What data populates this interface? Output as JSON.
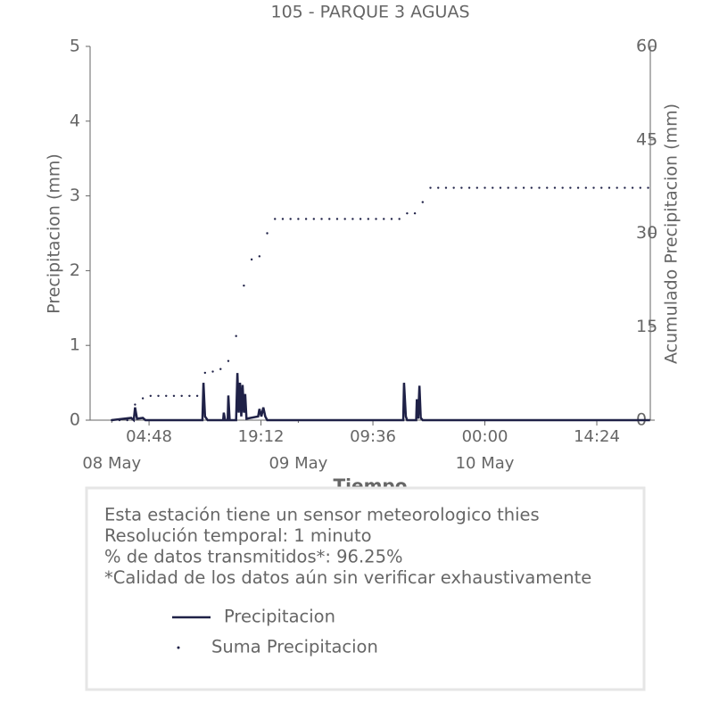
{
  "chart_data": {
    "type": "line",
    "title": "105 - PARQUE 3 AGUAS",
    "xlabel": "Tiempo",
    "ylabel": "Precipitacion (mm)",
    "y2label": "Acumulado Precipitacion (mm)",
    "xlim": [
      "07 May 21:13",
      "10 May 21:17"
    ],
    "xticks": [
      {
        "value": "08 May 04:48",
        "label": "04:48"
      },
      {
        "value": "08 May 19:12",
        "label": "19:12"
      },
      {
        "value": "09 May 09:36",
        "label": "09:36"
      },
      {
        "value": "10 May 00:00",
        "label": "00:00"
      },
      {
        "value": "10 May 14:24",
        "label": "14:24"
      }
    ],
    "xdateticks": [
      {
        "value": "08 May 00:00",
        "label": "08 May"
      },
      {
        "value": "09 May 00:00",
        "label": "09 May"
      },
      {
        "value": "10 May 00:00",
        "label": "10 May"
      }
    ],
    "ylim": [
      0,
      5
    ],
    "yticks": [
      0,
      1,
      2,
      3,
      4,
      5
    ],
    "y2lim": [
      0,
      60
    ],
    "y2ticks": [
      0,
      15,
      30,
      45,
      60
    ],
    "notes": [
      "Esta estación tiene un sensor meteorologico thies",
      "Resolución temporal: 1 minuto",
      "% de datos transmitidos*: 96.25%",
      "*Calidad de los datos aún sin verificar exhaustivamente"
    ],
    "series": [
      {
        "name": "Precipitacion",
        "color": "#1f2147",
        "style": "line",
        "x": [
          "08 May 00:00",
          "08 May 02:30",
          "08 May 02:50",
          "08 May 03:00",
          "08 May 03:15",
          "08 May 04:00",
          "08 May 04:20",
          "08 May 11:40",
          "08 May 11:48",
          "08 May 12:00",
          "08 May 12:20",
          "08 May 14:20",
          "08 May 14:25",
          "08 May 14:35",
          "08 May 14:55",
          "08 May 15:00",
          "08 May 15:10",
          "08 May 16:00",
          "08 May 16:10",
          "08 May 16:20",
          "08 May 16:30",
          "08 May 16:40",
          "08 May 16:50",
          "08 May 17:00",
          "08 May 17:10",
          "08 May 17:20",
          "08 May 18:50",
          "08 May 19:00",
          "08 May 19:15",
          "08 May 19:30",
          "08 May 19:45",
          "08 May 20:00",
          "09 May 13:30",
          "09 May 13:36",
          "09 May 13:50",
          "09 May 14:00",
          "09 May 15:10",
          "09 May 15:15",
          "09 May 15:25",
          "09 May 15:35",
          "09 May 15:45",
          "09 May 16:00",
          "10 May 21:15"
        ],
        "values": [
          0,
          0.03,
          0,
          0.17,
          0.02,
          0.03,
          0,
          0,
          0.5,
          0.05,
          0,
          0,
          0.1,
          0,
          0,
          0.33,
          0,
          0,
          0.63,
          0.1,
          0.5,
          0.05,
          0.47,
          0.1,
          0.35,
          0.02,
          0.05,
          0.15,
          0.05,
          0.17,
          0.05,
          0,
          0,
          0.5,
          0.05,
          0,
          0,
          0.28,
          0.02,
          0.46,
          0.03,
          0,
          0
        ]
      },
      {
        "name": "Suma Precipitacion",
        "color": "#1f2147",
        "style": "dots",
        "axis": "y2",
        "x": [
          "08 May 00:00",
          "08 May 01:00",
          "08 May 02:00",
          "08 May 03:00",
          "08 May 04:00",
          "08 May 05:00",
          "08 May 06:00",
          "08 May 07:00",
          "08 May 08:00",
          "08 May 09:00",
          "08 May 10:00",
          "08 May 11:00",
          "08 May 12:00",
          "08 May 13:00",
          "08 May 14:00",
          "08 May 15:00",
          "08 May 16:00",
          "08 May 17:00",
          "08 May 18:00",
          "08 May 19:00",
          "08 May 20:00",
          "08 May 21:00",
          "08 May 22:00",
          "08 May 23:00",
          "09 May 00:00",
          "09 May 01:00",
          "09 May 02:00",
          "09 May 03:00",
          "09 May 04:00",
          "09 May 05:00",
          "09 May 06:00",
          "09 May 07:00",
          "09 May 08:00",
          "09 May 09:00",
          "09 May 10:00",
          "09 May 11:00",
          "09 May 12:00",
          "09 May 13:00",
          "09 May 14:00",
          "09 May 15:00",
          "09 May 16:00",
          "09 May 17:00",
          "09 May 18:00",
          "09 May 19:00",
          "09 May 20:00",
          "09 May 21:00",
          "09 May 22:00",
          "09 May 23:00",
          "10 May 00:00",
          "10 May 01:00",
          "10 May 02:00",
          "10 May 03:00",
          "10 May 04:00",
          "10 May 05:00",
          "10 May 06:00",
          "10 May 07:00",
          "10 May 08:00",
          "10 May 09:00",
          "10 May 10:00",
          "10 May 11:00",
          "10 May 12:00",
          "10 May 13:00",
          "10 May 14:00",
          "10 May 15:00",
          "10 May 16:00",
          "10 May 17:00",
          "10 May 18:00",
          "10 May 19:00",
          "10 May 20:00",
          "10 May 21:00"
        ],
        "values": [
          0,
          0,
          0,
          2.5,
          3.5,
          3.9,
          3.9,
          3.9,
          3.9,
          3.9,
          3.9,
          3.9,
          7.6,
          7.8,
          8.2,
          9.5,
          13.5,
          21.6,
          25.8,
          26.3,
          30,
          32.3,
          32.3,
          32.3,
          32.3,
          32.3,
          32.3,
          32.3,
          32.3,
          32.3,
          32.3,
          32.3,
          32.3,
          32.3,
          32.3,
          32.3,
          32.3,
          32.3,
          33.2,
          33.2,
          35,
          37.3,
          37.3,
          37.3,
          37.3,
          37.3,
          37.3,
          37.3,
          37.3,
          37.3,
          37.3,
          37.3,
          37.3,
          37.3,
          37.3,
          37.3,
          37.3,
          37.3,
          37.3,
          37.3,
          37.3,
          37.3,
          37.3,
          37.3,
          37.3,
          37.3,
          37.3,
          37.3,
          37.3,
          37.3
        ]
      }
    ]
  }
}
